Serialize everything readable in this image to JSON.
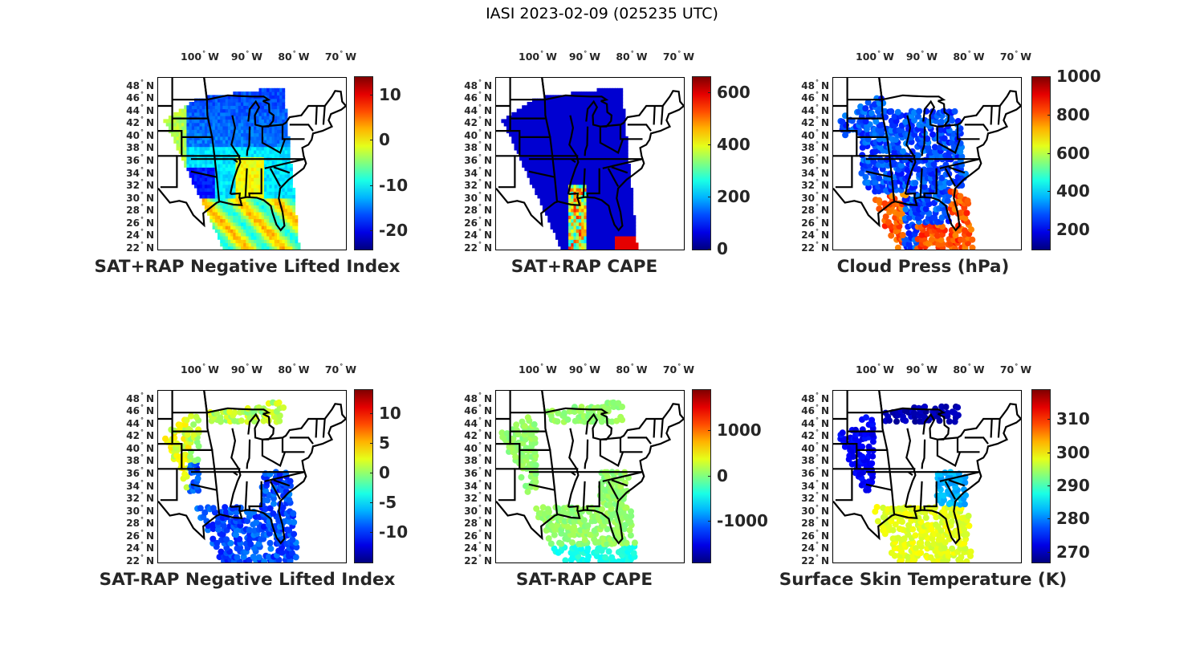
{
  "figure_title": "IASI 2023-02-09 (025235 UTC)",
  "chart_data": [
    {
      "type": "heatmap",
      "title": "SAT+RAP Negative Lifted Index",
      "xticks": [
        "100",
        "90",
        "80",
        "70"
      ],
      "yticks": [
        "48",
        "46",
        "44",
        "42",
        "40",
        "38",
        "36",
        "34",
        "32",
        "30",
        "28",
        "26",
        "24",
        "22"
      ],
      "lon_hemisphere": "W",
      "lat_hemisphere": "N",
      "colorbar": {
        "ticks": [
          10,
          0,
          -10,
          -20
        ],
        "labels": [
          "10",
          "0",
          "-10",
          "-20"
        ],
        "range": [
          -24,
          14
        ],
        "colormap": "jet"
      },
      "coverage": "swath",
      "field_style": "continuous"
    },
    {
      "type": "heatmap",
      "title": "SAT+RAP CAPE",
      "xticks": [
        "100",
        "90",
        "80",
        "70"
      ],
      "yticks": [
        "48",
        "46",
        "44",
        "42",
        "40",
        "38",
        "36",
        "34",
        "32",
        "30",
        "28",
        "26",
        "24",
        "22"
      ],
      "lon_hemisphere": "W",
      "lat_hemisphere": "N",
      "colorbar": {
        "ticks": [
          600,
          400,
          200,
          0
        ],
        "labels": [
          "600",
          "400",
          "200",
          "0"
        ],
        "range": [
          0,
          660
        ],
        "colormap": "jet"
      },
      "coverage": "swath",
      "field_style": "continuous"
    },
    {
      "type": "scatter",
      "title": "Cloud Press (hPa)",
      "xticks": [
        "100",
        "90",
        "80",
        "70"
      ],
      "yticks": [
        "48",
        "46",
        "44",
        "42",
        "40",
        "38",
        "36",
        "34",
        "32",
        "30",
        "28",
        "26",
        "24",
        "22"
      ],
      "lon_hemisphere": "W",
      "lat_hemisphere": "N",
      "colorbar": {
        "ticks": [
          1000,
          800,
          600,
          400,
          200
        ],
        "labels": [
          "1000",
          "800",
          "600",
          "400",
          "200"
        ],
        "range": [
          100,
          1000
        ],
        "colormap": "jet"
      },
      "coverage": "cloudy",
      "field_style": "dots"
    },
    {
      "type": "scatter",
      "title": "SAT-RAP Negative Lifted Index",
      "xticks": [
        "100",
        "90",
        "80",
        "70"
      ],
      "yticks": [
        "48",
        "46",
        "44",
        "42",
        "40",
        "38",
        "36",
        "34",
        "32",
        "30",
        "28",
        "26",
        "24",
        "22"
      ],
      "lon_hemisphere": "W",
      "lat_hemisphere": "N",
      "colorbar": {
        "ticks": [
          10,
          5,
          0,
          -5,
          -10
        ],
        "labels": [
          "10",
          "5",
          "0",
          "-5",
          "-10"
        ],
        "range": [
          -15,
          14
        ],
        "colormap": "jet"
      },
      "coverage": "clear",
      "field_style": "dots"
    },
    {
      "type": "scatter",
      "title": "SAT-RAP CAPE",
      "xticks": [
        "100",
        "90",
        "80",
        "70"
      ],
      "yticks": [
        "48",
        "46",
        "44",
        "42",
        "40",
        "38",
        "36",
        "34",
        "32",
        "30",
        "28",
        "26",
        "24",
        "22"
      ],
      "lon_hemisphere": "W",
      "lat_hemisphere": "N",
      "colorbar": {
        "ticks": [
          1000,
          0,
          -1000
        ],
        "labels": [
          "1000",
          "0",
          "-1000"
        ],
        "range": [
          -1900,
          1900
        ],
        "colormap": "jet"
      },
      "coverage": "clear",
      "field_style": "dots"
    },
    {
      "type": "scatter",
      "title": "Surface Skin Temperature (K)",
      "xticks": [
        "100",
        "90",
        "80",
        "70"
      ],
      "yticks": [
        "48",
        "46",
        "44",
        "42",
        "40",
        "38",
        "36",
        "34",
        "32",
        "30",
        "28",
        "26",
        "24",
        "22"
      ],
      "lon_hemisphere": "W",
      "lat_hemisphere": "N",
      "colorbar": {
        "ticks": [
          310,
          300,
          290,
          280,
          270
        ],
        "labels": [
          "310",
          "300",
          "290",
          "280",
          "270"
        ],
        "range": [
          267,
          319
        ],
        "colormap": "jet"
      },
      "coverage": "clear",
      "field_style": "dots"
    }
  ]
}
